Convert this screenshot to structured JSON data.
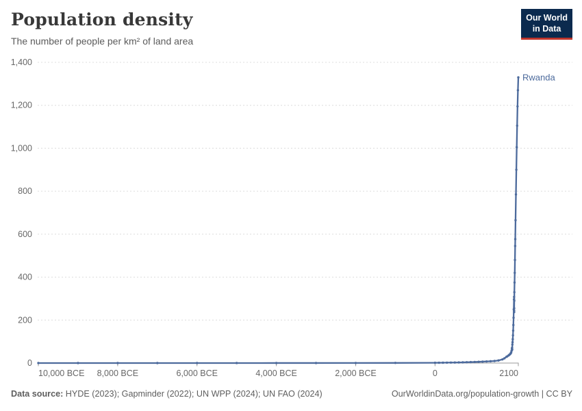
{
  "header": {
    "title": "Population density",
    "subtitle": "The number of people per km² of land area"
  },
  "logo": {
    "line1": "Our World",
    "line2": "in Data"
  },
  "footer": {
    "source_label": "Data source:",
    "source_text": " HYDE (2023); Gapminder (2022); UN WPP (2024); UN FAO (2024)",
    "link": "OurWorldinData.org/population-growth | CC BY"
  },
  "colors": {
    "series": "#4c6a9c",
    "grid": "#dcdcdc",
    "axis": "#999999",
    "tick_label": "#676767",
    "logo_bg": "#0b2a4e",
    "logo_bar": "#c0362c"
  },
  "chart_data": {
    "type": "line",
    "title": "Population density",
    "ylabel": "People per km² of land area",
    "xlim": [
      -10000,
      2100
    ],
    "ylim": [
      0,
      1400
    ],
    "grid": "horizontal-dashed",
    "x_axis": {
      "ticks": [
        {
          "value": -10000,
          "label": "10,000 BCE",
          "align": "start"
        },
        {
          "value": -8000,
          "label": "8,000 BCE",
          "align": "middle"
        },
        {
          "value": -6000,
          "label": "6,000 BCE",
          "align": "middle"
        },
        {
          "value": -4000,
          "label": "4,000 BCE",
          "align": "middle"
        },
        {
          "value": -2000,
          "label": "2,000 BCE",
          "align": "middle"
        },
        {
          "value": 0,
          "label": "0",
          "align": "middle"
        },
        {
          "value": 2100,
          "label": "2100",
          "align": "end"
        }
      ]
    },
    "y_axis": {
      "ticks": [
        {
          "value": 0,
          "label": "0"
        },
        {
          "value": 200,
          "label": "200"
        },
        {
          "value": 400,
          "label": "400"
        },
        {
          "value": 600,
          "label": "600"
        },
        {
          "value": 800,
          "label": "800"
        },
        {
          "value": 1000,
          "label": "1,000"
        },
        {
          "value": 1200,
          "label": "1,200"
        },
        {
          "value": 1400,
          "label": "1,400"
        }
      ]
    },
    "series": [
      {
        "name": "Rwanda",
        "color": "#4c6a9c",
        "points": [
          [
            -10000,
            0.02
          ],
          [
            -9000,
            0.02
          ],
          [
            -8000,
            0.03
          ],
          [
            -7000,
            0.04
          ],
          [
            -6000,
            0.06
          ],
          [
            -5000,
            0.08
          ],
          [
            -4000,
            0.12
          ],
          [
            -3000,
            0.2
          ],
          [
            -2000,
            0.35
          ],
          [
            -1000,
            0.6
          ],
          [
            0,
            1.2
          ],
          [
            100,
            1.4
          ],
          [
            200,
            1.6
          ],
          [
            300,
            1.9
          ],
          [
            400,
            2.2
          ],
          [
            500,
            2.5
          ],
          [
            600,
            2.9
          ],
          [
            700,
            3.3
          ],
          [
            800,
            3.8
          ],
          [
            900,
            4.4
          ],
          [
            1000,
            5.0
          ],
          [
            1100,
            5.7
          ],
          [
            1200,
            6.5
          ],
          [
            1300,
            7.4
          ],
          [
            1400,
            8.4
          ],
          [
            1500,
            9.6
          ],
          [
            1600,
            12
          ],
          [
            1700,
            17
          ],
          [
            1750,
            22
          ],
          [
            1800,
            29
          ],
          [
            1820,
            31
          ],
          [
            1850,
            35
          ],
          [
            1870,
            38
          ],
          [
            1890,
            41
          ],
          [
            1900,
            43
          ],
          [
            1910,
            46
          ],
          [
            1920,
            49
          ],
          [
            1930,
            57
          ],
          [
            1940,
            68
          ],
          [
            1943,
            71
          ],
          [
            1944,
            62
          ],
          [
            1945,
            63
          ],
          [
            1950,
            86
          ],
          [
            1955,
            97
          ],
          [
            1960,
            111
          ],
          [
            1965,
            129
          ],
          [
            1970,
            151
          ],
          [
            1975,
            177
          ],
          [
            1980,
            211
          ],
          [
            1985,
            250
          ],
          [
            1990,
            296
          ],
          [
            1993,
            308
          ],
          [
            1994,
            244
          ],
          [
            1995,
            237
          ],
          [
            1996,
            255
          ],
          [
            1998,
            290
          ],
          [
            2000,
            330
          ],
          [
            2005,
            375
          ],
          [
            2010,
            420
          ],
          [
            2015,
            480
          ],
          [
            2020,
            545
          ],
          [
            2023,
            577
          ],
          [
            2030,
            665
          ],
          [
            2040,
            785
          ],
          [
            2050,
            900
          ],
          [
            2060,
            1005
          ],
          [
            2070,
            1105
          ],
          [
            2080,
            1195
          ],
          [
            2090,
            1270
          ],
          [
            2100,
            1330
          ]
        ]
      }
    ],
    "end_label": "Rwanda"
  }
}
